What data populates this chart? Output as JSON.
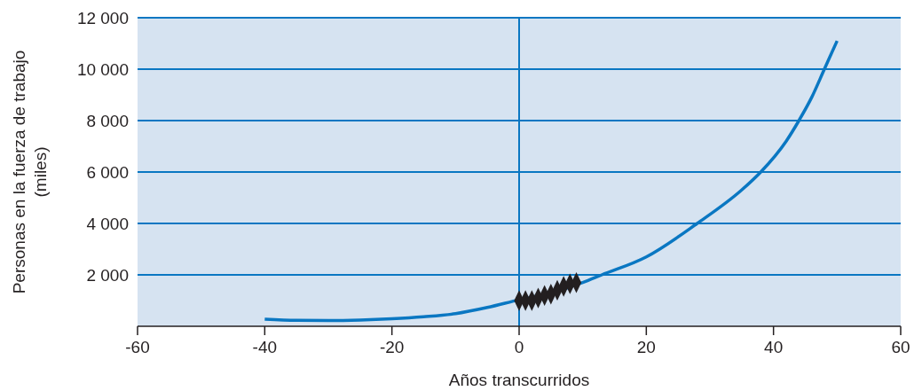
{
  "chart_data": {
    "type": "line",
    "xlabel": "Años transcurridos",
    "ylabel": "Personas en la fuerza de trabajo\n(miles)",
    "xlim": [
      -60,
      60
    ],
    "xticks": [
      -60,
      -40,
      -20,
      0,
      20,
      40,
      60
    ],
    "ylim": [
      0,
      12000
    ],
    "yticks": [
      {
        "value": 2000,
        "label": "2 000"
      },
      {
        "value": 4000,
        "label": "4 000"
      },
      {
        "value": 6000,
        "label": "6 000"
      },
      {
        "value": 8000,
        "label": "8 000"
      },
      {
        "value": 10000,
        "label": "10 000"
      },
      {
        "value": 12000,
        "label": "12 000"
      }
    ],
    "grid": "y",
    "ref_lines": [
      {
        "axis": "x",
        "value": 0,
        "color": "#0a77c2"
      }
    ],
    "series": [
      {
        "color": "#0a77c2",
        "marker": "none",
        "line_style": "solid",
        "x": [
          -40,
          -35,
          -30,
          -25,
          -20,
          -15,
          -10,
          -5,
          0,
          5,
          10,
          13,
          20,
          28,
          35,
          38,
          42,
          44,
          46,
          48,
          50
        ],
        "values": [
          280,
          230,
          220,
          240,
          290,
          370,
          490,
          730,
          1030,
          1300,
          1700,
          2000,
          2700,
          4000,
          5300,
          6000,
          7200,
          8000,
          8900,
          10000,
          11100
        ]
      },
      {
        "type": "scatter",
        "color": "#231f20",
        "marker": "diamond",
        "x": [
          0,
          1,
          2,
          3,
          4,
          5,
          6,
          7,
          8,
          9
        ],
        "values": [
          1000,
          1000,
          1000,
          1100,
          1200,
          1250,
          1400,
          1550,
          1650,
          1700
        ]
      }
    ]
  }
}
